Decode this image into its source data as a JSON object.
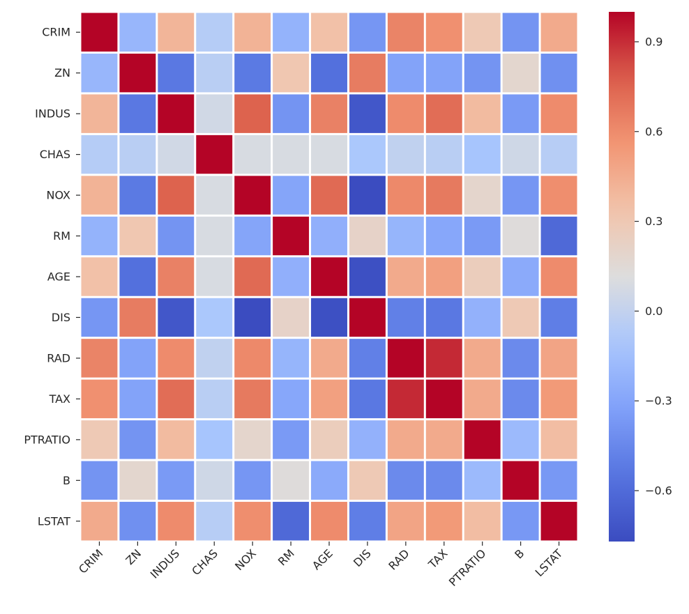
{
  "chart_data": {
    "type": "heatmap",
    "title": "",
    "xlabel": "",
    "ylabel": "",
    "labels": [
      "CRIM",
      "ZN",
      "INDUS",
      "CHAS",
      "NOX",
      "RM",
      "AGE",
      "DIS",
      "RAD",
      "TAX",
      "PTRATIO",
      "B",
      "LSTAT"
    ],
    "values": [
      [
        1.0,
        -0.2,
        0.41,
        -0.06,
        0.42,
        -0.22,
        0.35,
        -0.38,
        0.63,
        0.58,
        0.29,
        -0.39,
        0.46
      ],
      [
        -0.2,
        1.0,
        -0.53,
        -0.04,
        -0.52,
        0.31,
        -0.57,
        0.66,
        -0.31,
        -0.31,
        -0.39,
        0.18,
        -0.41
      ],
      [
        0.41,
        -0.53,
        1.0,
        0.06,
        0.76,
        -0.39,
        0.64,
        -0.71,
        0.6,
        0.72,
        0.38,
        -0.36,
        0.6
      ],
      [
        -0.06,
        -0.04,
        0.06,
        1.0,
        0.09,
        0.09,
        0.09,
        -0.1,
        -0.01,
        -0.04,
        -0.12,
        0.05,
        -0.05
      ],
      [
        0.42,
        -0.52,
        0.76,
        0.09,
        1.0,
        -0.3,
        0.73,
        -0.77,
        0.61,
        0.67,
        0.19,
        -0.38,
        0.59
      ],
      [
        -0.22,
        0.31,
        -0.39,
        0.09,
        -0.3,
        1.0,
        -0.24,
        0.21,
        -0.21,
        -0.29,
        -0.36,
        0.13,
        -0.61
      ],
      [
        0.35,
        -0.57,
        0.64,
        0.09,
        0.73,
        -0.24,
        1.0,
        -0.75,
        0.46,
        0.51,
        0.26,
        -0.27,
        0.6
      ],
      [
        -0.38,
        0.66,
        -0.71,
        -0.1,
        -0.77,
        0.21,
        -0.75,
        1.0,
        -0.49,
        -0.53,
        -0.23,
        0.29,
        -0.5
      ],
      [
        0.63,
        -0.31,
        0.6,
        -0.01,
        0.61,
        -0.21,
        0.46,
        -0.49,
        1.0,
        0.91,
        0.46,
        -0.44,
        0.49
      ],
      [
        0.58,
        -0.31,
        0.72,
        -0.04,
        0.67,
        -0.29,
        0.51,
        -0.53,
        0.91,
        1.0,
        0.46,
        -0.44,
        0.54
      ],
      [
        0.29,
        -0.39,
        0.38,
        -0.12,
        0.19,
        -0.36,
        0.26,
        -0.23,
        0.46,
        0.46,
        1.0,
        -0.18,
        0.37
      ],
      [
        -0.39,
        0.18,
        -0.36,
        0.05,
        -0.38,
        0.13,
        -0.27,
        0.29,
        -0.44,
        -0.44,
        -0.18,
        1.0,
        -0.37
      ],
      [
        0.46,
        -0.41,
        0.6,
        -0.05,
        0.59,
        -0.61,
        0.6,
        -0.5,
        0.49,
        0.54,
        0.37,
        -0.37,
        1.0
      ]
    ],
    "vmin": -0.77,
    "vmax": 1.0,
    "colormap": "coolwarm",
    "colorbar_ticks": [
      0.9,
      0.6,
      0.3,
      0.0,
      -0.3,
      -0.6
    ],
    "colorbar_tick_labels": [
      "0.9",
      "0.6",
      "0.3",
      "0.0",
      "−0.3",
      "−0.6"
    ],
    "cell_border_color": "#ffffff",
    "background_color": "#ffffff"
  }
}
